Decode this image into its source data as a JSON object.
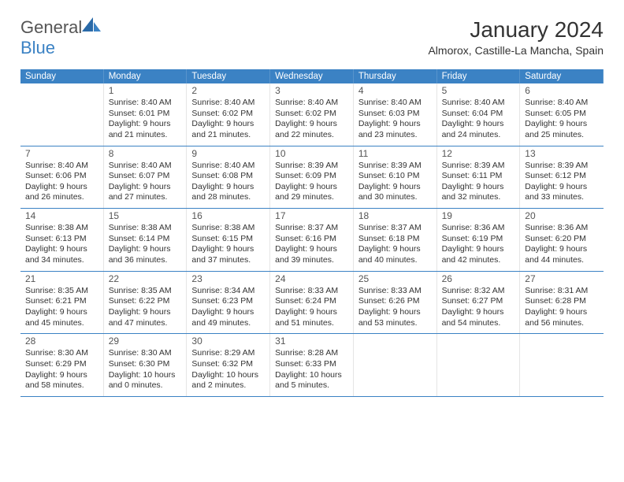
{
  "brand": {
    "part1": "General",
    "part2": "Blue"
  },
  "title": "January 2024",
  "location": "Almorox, Castille-La Mancha, Spain",
  "day_labels": [
    "Sunday",
    "Monday",
    "Tuesday",
    "Wednesday",
    "Thursday",
    "Friday",
    "Saturday"
  ],
  "colors": {
    "accent": "#3b82c4",
    "text": "#333333",
    "bg": "#ffffff"
  },
  "weeks": [
    {
      "cells": [
        {
          "empty": true
        },
        {
          "day": "1",
          "sunrise": "Sunrise: 8:40 AM",
          "sunset": "Sunset: 6:01 PM",
          "daylight1": "Daylight: 9 hours",
          "daylight2": "and 21 minutes."
        },
        {
          "day": "2",
          "sunrise": "Sunrise: 8:40 AM",
          "sunset": "Sunset: 6:02 PM",
          "daylight1": "Daylight: 9 hours",
          "daylight2": "and 21 minutes."
        },
        {
          "day": "3",
          "sunrise": "Sunrise: 8:40 AM",
          "sunset": "Sunset: 6:02 PM",
          "daylight1": "Daylight: 9 hours",
          "daylight2": "and 22 minutes."
        },
        {
          "day": "4",
          "sunrise": "Sunrise: 8:40 AM",
          "sunset": "Sunset: 6:03 PM",
          "daylight1": "Daylight: 9 hours",
          "daylight2": "and 23 minutes."
        },
        {
          "day": "5",
          "sunrise": "Sunrise: 8:40 AM",
          "sunset": "Sunset: 6:04 PM",
          "daylight1": "Daylight: 9 hours",
          "daylight2": "and 24 minutes."
        },
        {
          "day": "6",
          "sunrise": "Sunrise: 8:40 AM",
          "sunset": "Sunset: 6:05 PM",
          "daylight1": "Daylight: 9 hours",
          "daylight2": "and 25 minutes."
        }
      ]
    },
    {
      "cells": [
        {
          "day": "7",
          "sunrise": "Sunrise: 8:40 AM",
          "sunset": "Sunset: 6:06 PM",
          "daylight1": "Daylight: 9 hours",
          "daylight2": "and 26 minutes."
        },
        {
          "day": "8",
          "sunrise": "Sunrise: 8:40 AM",
          "sunset": "Sunset: 6:07 PM",
          "daylight1": "Daylight: 9 hours",
          "daylight2": "and 27 minutes."
        },
        {
          "day": "9",
          "sunrise": "Sunrise: 8:40 AM",
          "sunset": "Sunset: 6:08 PM",
          "daylight1": "Daylight: 9 hours",
          "daylight2": "and 28 minutes."
        },
        {
          "day": "10",
          "sunrise": "Sunrise: 8:39 AM",
          "sunset": "Sunset: 6:09 PM",
          "daylight1": "Daylight: 9 hours",
          "daylight2": "and 29 minutes."
        },
        {
          "day": "11",
          "sunrise": "Sunrise: 8:39 AM",
          "sunset": "Sunset: 6:10 PM",
          "daylight1": "Daylight: 9 hours",
          "daylight2": "and 30 minutes."
        },
        {
          "day": "12",
          "sunrise": "Sunrise: 8:39 AM",
          "sunset": "Sunset: 6:11 PM",
          "daylight1": "Daylight: 9 hours",
          "daylight2": "and 32 minutes."
        },
        {
          "day": "13",
          "sunrise": "Sunrise: 8:39 AM",
          "sunset": "Sunset: 6:12 PM",
          "daylight1": "Daylight: 9 hours",
          "daylight2": "and 33 minutes."
        }
      ]
    },
    {
      "cells": [
        {
          "day": "14",
          "sunrise": "Sunrise: 8:38 AM",
          "sunset": "Sunset: 6:13 PM",
          "daylight1": "Daylight: 9 hours",
          "daylight2": "and 34 minutes."
        },
        {
          "day": "15",
          "sunrise": "Sunrise: 8:38 AM",
          "sunset": "Sunset: 6:14 PM",
          "daylight1": "Daylight: 9 hours",
          "daylight2": "and 36 minutes."
        },
        {
          "day": "16",
          "sunrise": "Sunrise: 8:38 AM",
          "sunset": "Sunset: 6:15 PM",
          "daylight1": "Daylight: 9 hours",
          "daylight2": "and 37 minutes."
        },
        {
          "day": "17",
          "sunrise": "Sunrise: 8:37 AM",
          "sunset": "Sunset: 6:16 PM",
          "daylight1": "Daylight: 9 hours",
          "daylight2": "and 39 minutes."
        },
        {
          "day": "18",
          "sunrise": "Sunrise: 8:37 AM",
          "sunset": "Sunset: 6:18 PM",
          "daylight1": "Daylight: 9 hours",
          "daylight2": "and 40 minutes."
        },
        {
          "day": "19",
          "sunrise": "Sunrise: 8:36 AM",
          "sunset": "Sunset: 6:19 PM",
          "daylight1": "Daylight: 9 hours",
          "daylight2": "and 42 minutes."
        },
        {
          "day": "20",
          "sunrise": "Sunrise: 8:36 AM",
          "sunset": "Sunset: 6:20 PM",
          "daylight1": "Daylight: 9 hours",
          "daylight2": "and 44 minutes."
        }
      ]
    },
    {
      "cells": [
        {
          "day": "21",
          "sunrise": "Sunrise: 8:35 AM",
          "sunset": "Sunset: 6:21 PM",
          "daylight1": "Daylight: 9 hours",
          "daylight2": "and 45 minutes."
        },
        {
          "day": "22",
          "sunrise": "Sunrise: 8:35 AM",
          "sunset": "Sunset: 6:22 PM",
          "daylight1": "Daylight: 9 hours",
          "daylight2": "and 47 minutes."
        },
        {
          "day": "23",
          "sunrise": "Sunrise: 8:34 AM",
          "sunset": "Sunset: 6:23 PM",
          "daylight1": "Daylight: 9 hours",
          "daylight2": "and 49 minutes."
        },
        {
          "day": "24",
          "sunrise": "Sunrise: 8:33 AM",
          "sunset": "Sunset: 6:24 PM",
          "daylight1": "Daylight: 9 hours",
          "daylight2": "and 51 minutes."
        },
        {
          "day": "25",
          "sunrise": "Sunrise: 8:33 AM",
          "sunset": "Sunset: 6:26 PM",
          "daylight1": "Daylight: 9 hours",
          "daylight2": "and 53 minutes."
        },
        {
          "day": "26",
          "sunrise": "Sunrise: 8:32 AM",
          "sunset": "Sunset: 6:27 PM",
          "daylight1": "Daylight: 9 hours",
          "daylight2": "and 54 minutes."
        },
        {
          "day": "27",
          "sunrise": "Sunrise: 8:31 AM",
          "sunset": "Sunset: 6:28 PM",
          "daylight1": "Daylight: 9 hours",
          "daylight2": "and 56 minutes."
        }
      ]
    },
    {
      "cells": [
        {
          "day": "28",
          "sunrise": "Sunrise: 8:30 AM",
          "sunset": "Sunset: 6:29 PM",
          "daylight1": "Daylight: 9 hours",
          "daylight2": "and 58 minutes."
        },
        {
          "day": "29",
          "sunrise": "Sunrise: 8:30 AM",
          "sunset": "Sunset: 6:30 PM",
          "daylight1": "Daylight: 10 hours",
          "daylight2": "and 0 minutes."
        },
        {
          "day": "30",
          "sunrise": "Sunrise: 8:29 AM",
          "sunset": "Sunset: 6:32 PM",
          "daylight1": "Daylight: 10 hours",
          "daylight2": "and 2 minutes."
        },
        {
          "day": "31",
          "sunrise": "Sunrise: 8:28 AM",
          "sunset": "Sunset: 6:33 PM",
          "daylight1": "Daylight: 10 hours",
          "daylight2": "and 5 minutes."
        },
        {
          "empty": true
        },
        {
          "empty": true
        },
        {
          "empty": true
        }
      ]
    }
  ]
}
